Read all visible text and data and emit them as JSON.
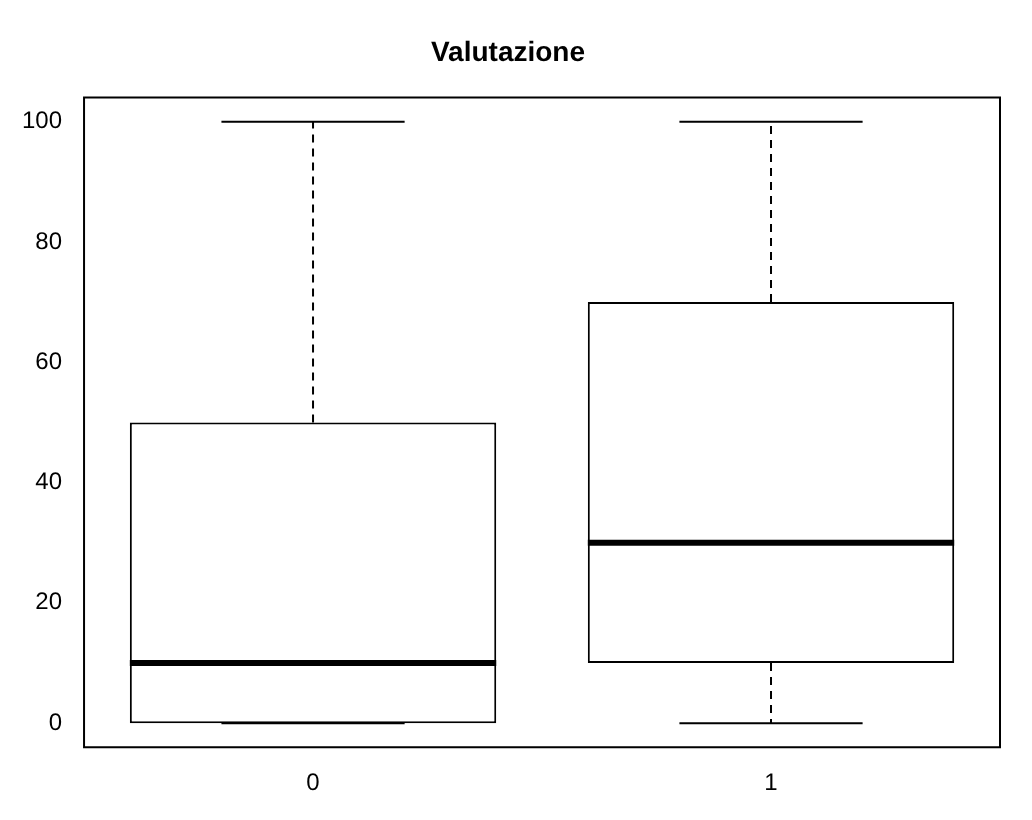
{
  "chart_data": {
    "type": "box",
    "title": "Valutazione",
    "categories": [
      "0",
      "1"
    ],
    "boxes": [
      {
        "low": 0,
        "q1": 0,
        "median": 10,
        "q3": 50,
        "high": 100
      },
      {
        "low": 0,
        "q1": 10,
        "median": 30,
        "q3": 70,
        "high": 100
      }
    ],
    "ylim": [
      -4,
      104
    ],
    "yticks": [
      0,
      20,
      40,
      60,
      80,
      100
    ]
  }
}
